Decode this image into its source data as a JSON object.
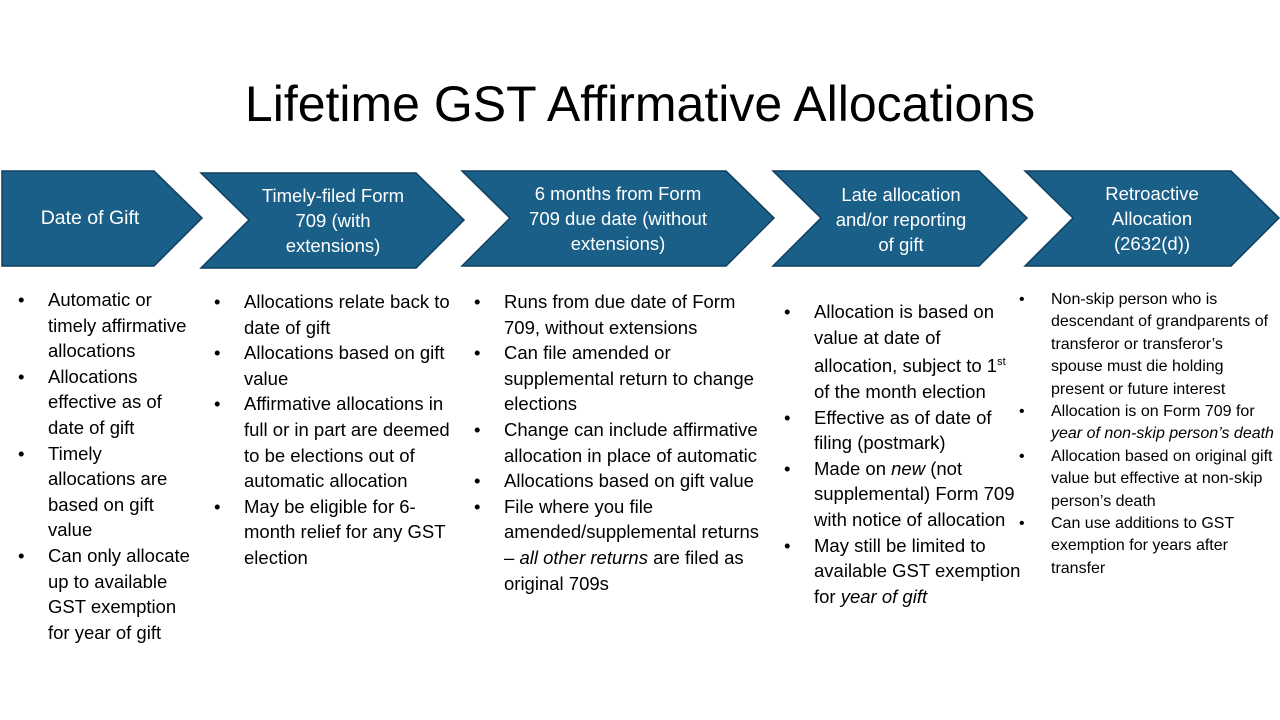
{
  "title": "Lifetime GST Affirmative Allocations",
  "colors": {
    "chevron": "#1a5f87",
    "chevron_border": "#0f3f5e"
  },
  "steps": [
    {
      "label": "Date of Gift"
    },
    {
      "label": "Timely-filed Form 709 (with extensions)"
    },
    {
      "label": "6 months from Form 709 due date (without extensions)"
    },
    {
      "label": "Late allocation and/or reporting of gift"
    },
    {
      "label": "Retroactive Allocation (2632(d))"
    }
  ],
  "columns": [
    {
      "bullets": [
        "Automatic or timely affirmative allocations",
        "Allocations effective as of date of gift",
        "Timely allocations are based on gift value",
        "Can only allocate up to available GST exemption for year of gift"
      ]
    },
    {
      "bullets": [
        "Allocations relate back to date of gift",
        "Allocations based on gift value",
        "Affirmative allocations in full or in part are deemed to be elections out of automatic allocation",
        "May be eligible for 6-month relief for any GST election"
      ]
    },
    {
      "bullets": [
        "Runs from due date of Form 709, without extensions",
        "Can file amended or supplemental return to change elections",
        "Change can include affirmative allocation in place of automatic",
        "Allocations based on gift value",
        {
          "before": "File where you file amended/supplemental returns – ",
          "italic": "all other returns",
          "after": " are filed as original 709s"
        }
      ]
    },
    {
      "bullets": [
        {
          "before": "Allocation is based on value at date of allocation, subject to 1",
          "sup": "st",
          "after": " of the month election"
        },
        "Effective as of date of filing (postmark)",
        {
          "before": "Made on ",
          "italic": "new",
          "after": " (not supplemental) Form 709 with notice of allocation"
        },
        {
          "before": "May still be limited to available GST exemption for ",
          "italic": "year of gift",
          "after": ""
        }
      ]
    },
    {
      "bullets": [
        "Non-skip person who is descendant of grandparents of transferor or transferor’s spouse must die holding present or future interest",
        {
          "before": "Allocation is on Form 709 for ",
          "italic": "year of non-skip person’s death",
          "after": ""
        },
        "Allocation based on original gift value but effective at non-skip person’s death",
        "Can use additions to GST exemption for years after transfer"
      ]
    }
  ]
}
